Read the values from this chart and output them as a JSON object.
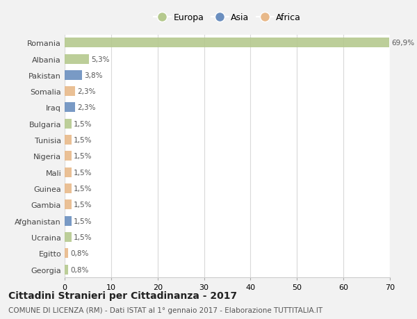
{
  "countries": [
    "Romania",
    "Albania",
    "Pakistan",
    "Somalia",
    "Iraq",
    "Bulgaria",
    "Tunisia",
    "Nigeria",
    "Mali",
    "Guinea",
    "Gambia",
    "Afghanistan",
    "Ucraina",
    "Egitto",
    "Georgia"
  ],
  "values": [
    69.9,
    5.3,
    3.8,
    2.3,
    2.3,
    1.5,
    1.5,
    1.5,
    1.5,
    1.5,
    1.5,
    1.5,
    1.5,
    0.8,
    0.8
  ],
  "labels": [
    "69,9%",
    "5,3%",
    "3,8%",
    "2,3%",
    "2,3%",
    "1,5%",
    "1,5%",
    "1,5%",
    "1,5%",
    "1,5%",
    "1,5%",
    "1,5%",
    "1,5%",
    "0,8%",
    "0,8%"
  ],
  "continents": [
    "Europa",
    "Europa",
    "Asia",
    "Africa",
    "Asia",
    "Europa",
    "Africa",
    "Africa",
    "Africa",
    "Africa",
    "Africa",
    "Asia",
    "Europa",
    "Africa",
    "Europa"
  ],
  "continent_colors": {
    "Europa": "#b5c98e",
    "Asia": "#6b8fbf",
    "Africa": "#e8b98a"
  },
  "legend_labels": [
    "Europa",
    "Asia",
    "Africa"
  ],
  "legend_colors": [
    "#b5c98e",
    "#6b8fbf",
    "#e8b98a"
  ],
  "xlim": [
    0,
    70
  ],
  "xticks": [
    0,
    10,
    20,
    30,
    40,
    50,
    60,
    70
  ],
  "title": "Cittadini Stranieri per Cittadinanza - 2017",
  "subtitle": "COMUNE DI LICENZA (RM) - Dati ISTAT al 1° gennaio 2017 - Elaborazione TUTTITALIA.IT",
  "background_color": "#f2f2f2",
  "plot_background": "#ffffff",
  "bar_height": 0.6,
  "label_fontsize": 7.5,
  "title_fontsize": 10,
  "subtitle_fontsize": 7.5,
  "ytick_fontsize": 8,
  "xtick_fontsize": 8,
  "grid_color": "#d9d9d9",
  "label_color": "#555555"
}
